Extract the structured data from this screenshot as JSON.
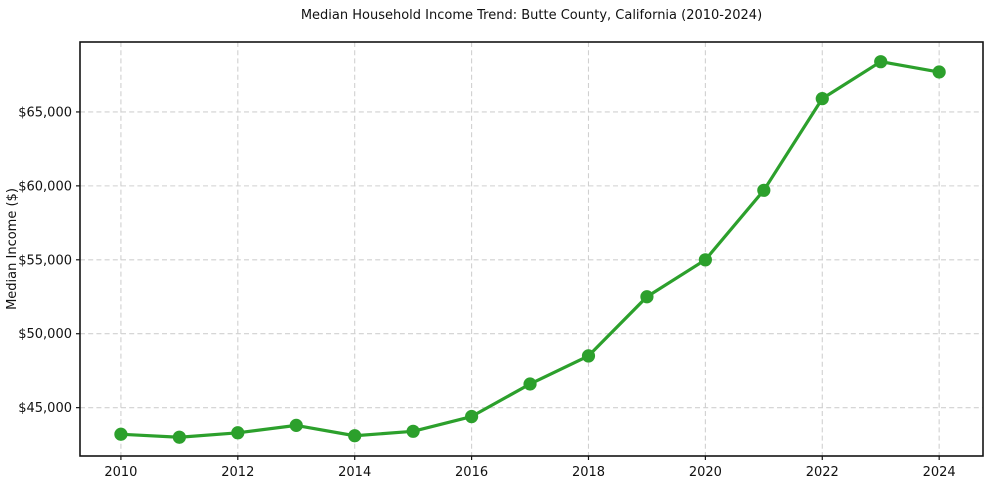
{
  "page": {
    "background": "#ffffff"
  },
  "chart_data": {
    "type": "line",
    "title": "Median Household Income Trend: Butte County, California (2010-2024)",
    "xlabel": "",
    "ylabel": "Median Income ($)",
    "x": [
      2010,
      2011,
      2012,
      2013,
      2014,
      2015,
      2016,
      2017,
      2018,
      2019,
      2020,
      2021,
      2022,
      2023,
      2024
    ],
    "series": [
      {
        "name": "Median household income",
        "color": "#2ca02c",
        "marker": "filled-circle",
        "values": [
          43200,
          43000,
          43300,
          43800,
          43100,
          43400,
          44400,
          46600,
          48500,
          52500,
          55000,
          59700,
          65900,
          68400,
          67700
        ]
      }
    ],
    "x_ticks": [
      2010,
      2012,
      2014,
      2016,
      2018,
      2020,
      2022,
      2024
    ],
    "x_tick_labels": [
      "2010",
      "2012",
      "2014",
      "2016",
      "2018",
      "2020",
      "2022",
      "2024"
    ],
    "y_ticks": [
      45000,
      50000,
      55000,
      60000,
      65000
    ],
    "y_tick_labels": [
      "$45,000",
      "$50,000",
      "$55,000",
      "$60,000",
      "$65,000"
    ],
    "xlim": [
      2009.3,
      2024.75
    ],
    "ylim": [
      41730,
      69730
    ],
    "grid": "dashed-major-both",
    "legend": "none",
    "style": {
      "line_color": "#2ca02c",
      "marker_color": "#2ca02c",
      "grid_color": "#d0d0d0",
      "spine_color": "#141414",
      "tick_color": "#141414",
      "text_color": "#111111",
      "plot_background": "#ffffff"
    }
  }
}
